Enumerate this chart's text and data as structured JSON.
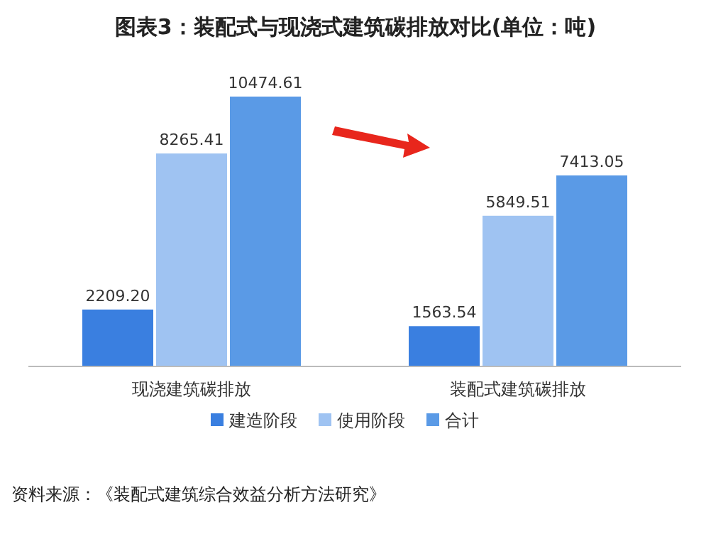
{
  "chart_data": {
    "type": "bar",
    "title": "图表3：装配式与现浇式建筑碳排放对比(单位：吨)",
    "categories": [
      "现浇建筑碳排放",
      "装配式建筑碳排放"
    ],
    "series": [
      {
        "name": "建造阶段",
        "color": "#3a7fe0",
        "values": [
          2209.2,
          1563.54
        ],
        "value_labels": [
          "2209.20",
          "1563.54"
        ]
      },
      {
        "name": "使用阶段",
        "color": "#9fc3f2",
        "values": [
          8265.41,
          5849.51
        ],
        "value_labels": [
          "8265.41",
          "5849.51"
        ]
      },
      {
        "name": "合计",
        "color": "#5a9ae6",
        "values": [
          10474.61,
          7413.05
        ],
        "value_labels": [
          "10474.61",
          "7413.05"
        ]
      }
    ],
    "legend": "bottom",
    "grid": false,
    "annotations": [
      "资料来源：《装配式建筑综合效益分析方法研究》"
    ]
  }
}
